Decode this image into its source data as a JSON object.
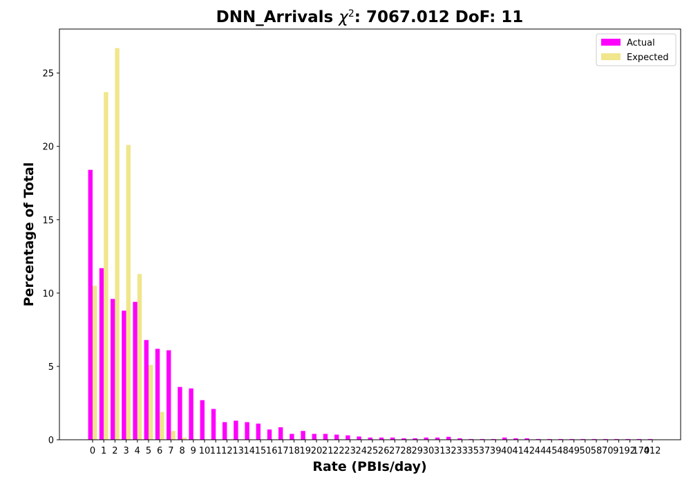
{
  "chart_data": {
    "type": "bar",
    "title": "DNN_Arrivals χ²: 7067.012 DoF: 11",
    "title_parts": {
      "prefix": "DNN_Arrivals ",
      "chi": "χ",
      "sup": "2",
      "suffix": ": 7067.012 DoF: 11"
    },
    "xlabel": "Rate (PBIs/day)",
    "ylabel": "Percentage of Total",
    "ylim": [
      0,
      28
    ],
    "yticks": [
      0,
      5,
      10,
      15,
      20,
      25
    ],
    "grid": false,
    "legend_position": "top-right",
    "categories": [
      "0",
      "1",
      "2",
      "3",
      "4",
      "5",
      "6",
      "7",
      "8",
      "9",
      "10",
      "11",
      "12",
      "13",
      "14",
      "15",
      "16",
      "17",
      "18",
      "19",
      "20",
      "21",
      "22",
      "23",
      "24",
      "25",
      "26",
      "27",
      "28",
      "29",
      "30",
      "31",
      "32",
      "33",
      "35",
      "37",
      "39",
      "40",
      "41",
      "42",
      "44",
      "45",
      "48",
      "49",
      "50",
      "58",
      "70",
      "91",
      "92",
      "170",
      "412"
    ],
    "series": [
      {
        "name": "Actual",
        "color": "#ff00ff",
        "values": [
          18.4,
          11.7,
          9.6,
          8.8,
          9.4,
          6.8,
          6.2,
          6.1,
          3.6,
          3.5,
          2.7,
          2.1,
          1.2,
          1.3,
          1.2,
          1.1,
          0.7,
          0.85,
          0.4,
          0.6,
          0.4,
          0.4,
          0.35,
          0.3,
          0.22,
          0.15,
          0.15,
          0.15,
          0.1,
          0.1,
          0.15,
          0.15,
          0.2,
          0.1,
          0.05,
          0.05,
          0.05,
          0.15,
          0.1,
          0.1,
          0.05,
          0.05,
          0.05,
          0.05,
          0.05,
          0.05,
          0.05,
          0.05,
          0.05,
          0.05,
          0.05
        ]
      },
      {
        "name": "Expected",
        "color": "#f0e68c",
        "values": [
          10.5,
          23.7,
          26.7,
          20.1,
          11.3,
          5.1,
          1.9,
          0.6,
          0.15,
          0.04,
          0.01,
          0,
          0,
          0,
          0,
          0,
          0,
          0,
          0,
          0,
          0,
          0,
          0,
          0,
          0,
          0,
          0,
          0,
          0,
          0,
          0,
          0,
          0,
          0,
          0,
          0,
          0,
          0,
          0,
          0,
          0,
          0,
          0,
          0,
          0,
          0,
          0,
          0,
          0,
          0,
          0
        ]
      }
    ]
  }
}
